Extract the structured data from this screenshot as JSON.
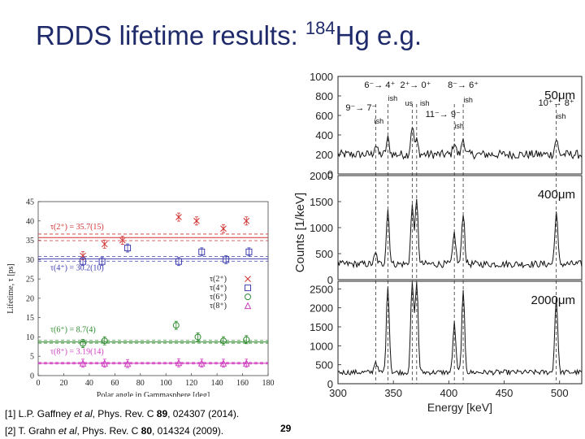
{
  "slide": {
    "title_prefix": "RDDS lifetime results: ",
    "title_mass": "184",
    "title_element": "Hg e.g.",
    "page_number": "29"
  },
  "references": [
    {
      "prefix": "[1] L.P. Gaffney ",
      "etal": "et al",
      "mid": ", Phys. Rev. C ",
      "vol": "89",
      "tail": ", 024307 (2014)."
    },
    {
      "prefix": "[2] T. Grahn ",
      "etal": "et al",
      "mid": ", Phys. Rev. C ",
      "vol": "80",
      "tail": ", 014324 (2009)."
    }
  ],
  "chart_data": [
    {
      "type": "scatter",
      "xlabel": "Polar angle in Gammasphere [deg]",
      "ylabel": "Lifetime, τ [ps]",
      "xlim": [
        0,
        180
      ],
      "ylim": [
        0,
        45
      ],
      "xticks": [
        0,
        20,
        40,
        60,
        80,
        100,
        120,
        140,
        160,
        180
      ],
      "yticks": [
        0,
        5,
        10,
        15,
        20,
        25,
        30,
        35,
        40,
        45
      ],
      "fits": [
        {
          "label": "τ(2⁺) = 35.7(15)",
          "value": 35.7,
          "band": [
            34.9,
            36.6
          ],
          "color": "#d03030"
        },
        {
          "label": "τ(4⁺) = 30.2(10)",
          "value": 30.2,
          "band": [
            29.6,
            30.8
          ],
          "color": "#4040b0"
        },
        {
          "label": "τ(6⁺) = 8.7(4)",
          "value": 8.7,
          "band": [
            8.4,
            9.1
          ],
          "color": "#2e8a2e"
        },
        {
          "label": "τ(8⁺) = 3.19(14)",
          "value": 3.19,
          "band": [
            3.0,
            3.4
          ],
          "color": "#d040c0"
        }
      ],
      "series": [
        {
          "name": "τ(2⁺)",
          "marker": "x",
          "color": "#d03030",
          "points": [
            [
              35,
              31
            ],
            [
              52,
              34
            ],
            [
              66,
              35
            ],
            [
              110,
              41
            ],
            [
              124,
              40
            ],
            [
              145,
              38
            ],
            [
              163,
              40
            ]
          ]
        },
        {
          "name": "τ(4⁺)",
          "marker": "square",
          "color": "#4040b0",
          "points": [
            [
              35,
              29.5
            ],
            [
              50,
              29.5
            ],
            [
              70,
              33
            ],
            [
              110,
              29.5
            ],
            [
              128,
              32
            ],
            [
              147,
              30
            ],
            [
              165,
              32
            ]
          ]
        },
        {
          "name": "τ(6⁺)",
          "marker": "circle",
          "color": "#2e8a2e",
          "points": [
            [
              35,
              8.3
            ],
            [
              52,
              9
            ],
            [
              108,
              13
            ],
            [
              125,
              10
            ],
            [
              145,
              9
            ],
            [
              163,
              9.3
            ]
          ]
        },
        {
          "name": "τ(8⁺)",
          "marker": "triangle",
          "color": "#d040c0",
          "points": [
            [
              35,
              3.2
            ],
            [
              52,
              3.2
            ],
            [
              70,
              3.1
            ],
            [
              110,
              3.3
            ],
            [
              128,
              3.2
            ],
            [
              145,
              3.2
            ],
            [
              163,
              3.2
            ]
          ]
        }
      ]
    },
    {
      "type": "line",
      "xlabel": "Energy [keV]",
      "ylabel": "Counts [1/keV]",
      "xlim": [
        300,
        520
      ],
      "xticks": [
        300,
        350,
        400,
        450,
        500
      ],
      "transition_lines_keV": [
        334,
        345,
        367,
        371,
        405,
        413,
        497
      ],
      "panels": [
        {
          "label": "50μm",
          "ylim": [
            0,
            1000
          ],
          "yticks": [
            0,
            200,
            400,
            600,
            800,
            1000
          ],
          "baseline": 200,
          "peaks": [
            [
              334,
              100
            ],
            [
              345,
              160
            ],
            [
              367,
              300
            ],
            [
              371,
              140
            ],
            [
              405,
              130
            ],
            [
              413,
              170
            ],
            [
              497,
              160
            ]
          ]
        },
        {
          "label": "400μm",
          "ylim": [
            0,
            2000
          ],
          "yticks": [
            0,
            500,
            1000,
            1500,
            2000
          ],
          "baseline": 300,
          "peaks": [
            [
              334,
              200
            ],
            [
              345,
              1050
            ],
            [
              367,
              1100
            ],
            [
              371,
              1200
            ],
            [
              405,
              600
            ],
            [
              413,
              1000
            ],
            [
              497,
              1000
            ]
          ]
        },
        {
          "label": "2000μm",
          "ylim": [
            0,
            2700
          ],
          "yticks": [
            0,
            500,
            1000,
            1500,
            2000,
            2500
          ],
          "baseline": 300,
          "peaks": [
            [
              334,
              300
            ],
            [
              345,
              2300
            ],
            [
              367,
              2450
            ],
            [
              371,
              2500
            ],
            [
              405,
              1300
            ],
            [
              413,
              2100
            ],
            [
              497,
              2000
            ]
          ]
        }
      ],
      "annotations": [
        {
          "text": "6⁻→ 4⁺",
          "keV": 345
        },
        {
          "text": "2⁺→ 0⁺",
          "keV": 370
        },
        {
          "text": "8⁻→ 6⁺",
          "keV": 413
        },
        {
          "text": "9⁻→ 7⁻",
          "keV": 334
        },
        {
          "text": "11⁻→ 9⁻",
          "keV": 405
        },
        {
          "text": "10⁺→ 8⁺",
          "keV": 497
        }
      ],
      "markers": [
        {
          "text": "ish",
          "keV": 345
        },
        {
          "text": "us",
          "keV": 367
        },
        {
          "text": "ish",
          "keV": 371
        },
        {
          "text": "ish",
          "keV": 413
        },
        {
          "text": "ish",
          "keV": 334
        },
        {
          "text": "ish",
          "keV": 405
        },
        {
          "text": "ish",
          "keV": 497
        }
      ]
    }
  ]
}
